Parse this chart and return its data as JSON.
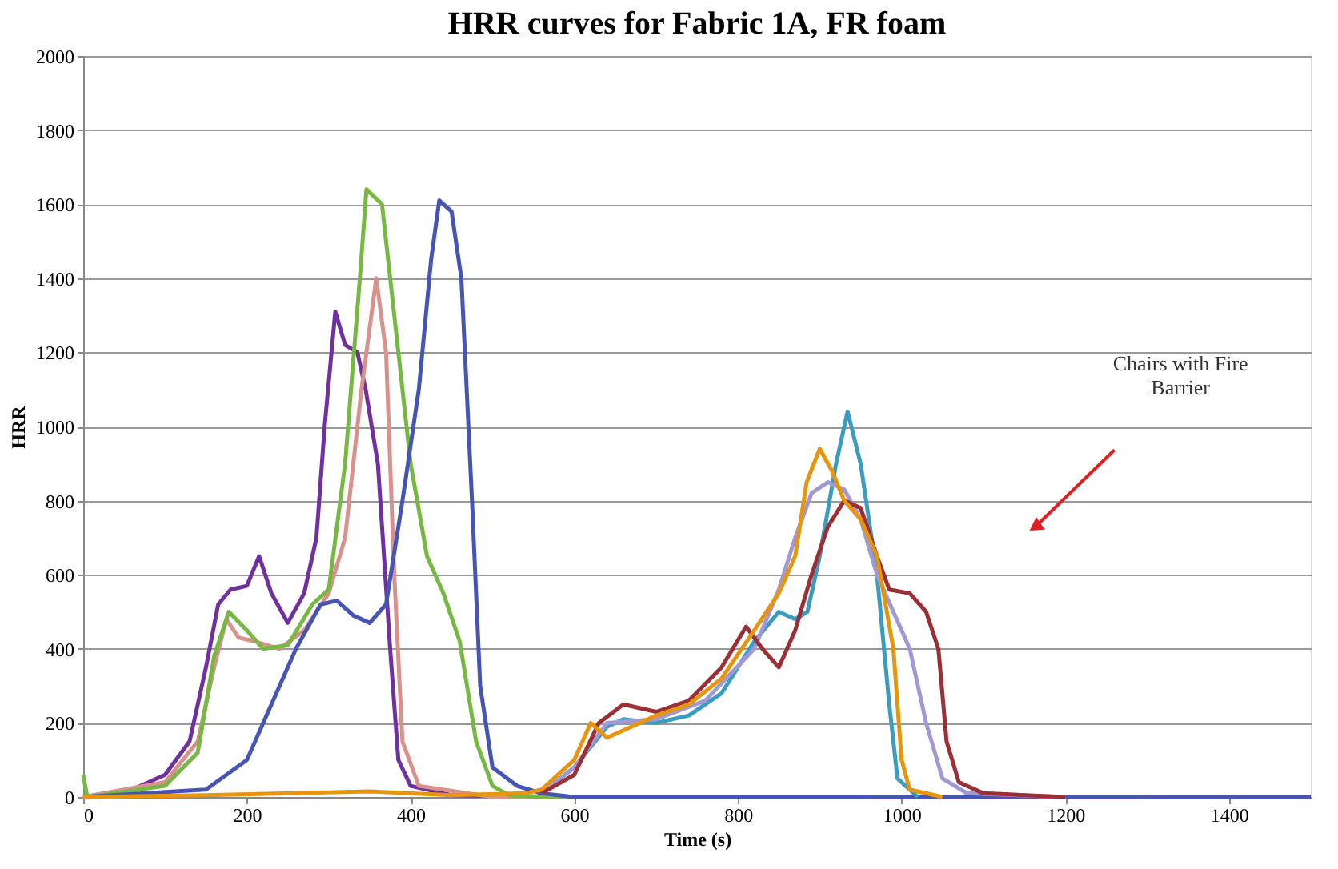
{
  "chart_data": {
    "type": "line",
    "title": "HRR curves for Fabric 1A, FR foam",
    "xlabel": "Time (s)",
    "ylabel": "HRR",
    "xlim": [
      0,
      1500
    ],
    "xticks": [
      0,
      200,
      400,
      600,
      800,
      1000,
      1200,
      1400
    ],
    "ylim": [
      0,
      2000
    ],
    "yticks": [
      0,
      200,
      400,
      600,
      800,
      1000,
      1200,
      1400,
      1600,
      1800,
      2000
    ],
    "grid": "y",
    "marker": "none",
    "line_style": "solid",
    "annotations": [
      "Chairs with Fire\nBarrier"
    ],
    "series": [
      {
        "color": "#7030a0",
        "x": [
          0,
          60,
          100,
          130,
          150,
          165,
          180,
          200,
          215,
          230,
          250,
          270,
          285,
          295,
          308,
          320,
          335,
          345,
          360,
          375,
          385,
          400,
          450,
          600
        ],
        "values": [
          0,
          20,
          60,
          150,
          350,
          520,
          560,
          570,
          650,
          550,
          470,
          550,
          700,
          1000,
          1310,
          1220,
          1200,
          1100,
          900,
          400,
          100,
          30,
          5,
          0
        ]
      },
      {
        "color": "#d9918c",
        "x": [
          0,
          100,
          140,
          160,
          175,
          190,
          210,
          240,
          270,
          300,
          320,
          340,
          358,
          370,
          380,
          390,
          410,
          500,
          950,
          1300
        ],
        "values": [
          0,
          40,
          150,
          350,
          480,
          430,
          420,
          400,
          450,
          550,
          700,
          1100,
          1400,
          1200,
          600,
          150,
          30,
          0,
          0,
          0
        ]
      },
      {
        "color": "#77b843",
        "x": [
          0,
          5,
          100,
          140,
          160,
          178,
          200,
          220,
          250,
          280,
          300,
          320,
          338,
          346,
          365,
          380,
          400,
          420,
          440,
          460,
          480,
          500,
          520,
          560,
          950
        ],
        "values": [
          60,
          0,
          30,
          120,
          380,
          500,
          450,
          400,
          410,
          520,
          560,
          900,
          1400,
          1640,
          1600,
          1300,
          900,
          650,
          550,
          420,
          150,
          30,
          5,
          0,
          0
        ]
      },
      {
        "color": "#4655b5",
        "x": [
          0,
          150,
          200,
          230,
          260,
          290,
          310,
          330,
          350,
          370,
          390,
          410,
          425,
          435,
          450,
          462,
          475,
          485,
          500,
          530,
          560,
          600,
          1300,
          1500
        ],
        "values": [
          0,
          20,
          100,
          250,
          400,
          520,
          530,
          490,
          470,
          520,
          800,
          1100,
          1450,
          1610,
          1580,
          1400,
          800,
          300,
          80,
          30,
          10,
          0,
          0,
          0
        ]
      },
      {
        "color": "#3a9cc0",
        "x": [
          560,
          600,
          640,
          660,
          700,
          740,
          780,
          820,
          850,
          870,
          885,
          900,
          920,
          934,
          950,
          970,
          985,
          995,
          1020
        ],
        "values": [
          10,
          80,
          190,
          210,
          200,
          220,
          280,
          420,
          500,
          480,
          500,
          650,
          900,
          1040,
          900,
          600,
          250,
          50,
          0
        ]
      },
      {
        "color": "#a099d5",
        "x": [
          560,
          600,
          640,
          700,
          760,
          820,
          850,
          870,
          890,
          910,
          930,
          950,
          970,
          990,
          1010,
          1030,
          1050,
          1080,
          1200
        ],
        "values": [
          10,
          80,
          200,
          210,
          260,
          400,
          560,
          700,
          820,
          850,
          830,
          750,
          600,
          500,
          400,
          200,
          50,
          10,
          0
        ]
      },
      {
        "color": "#9b2f35",
        "x": [
          560,
          600,
          630,
          660,
          700,
          740,
          780,
          810,
          830,
          850,
          870,
          890,
          910,
          930,
          950,
          970,
          985,
          1010,
          1030,
          1045,
          1055,
          1070,
          1100,
          1200
        ],
        "values": [
          10,
          60,
          200,
          250,
          230,
          260,
          350,
          460,
          400,
          350,
          450,
          600,
          730,
          800,
          780,
          650,
          560,
          550,
          500,
          400,
          150,
          40,
          10,
          0
        ]
      },
      {
        "color": "#e8950e",
        "x": [
          0,
          150,
          350,
          450,
          540,
          560,
          600,
          620,
          640,
          660,
          700,
          740,
          780,
          820,
          850,
          870,
          884,
          900,
          915,
          930,
          950,
          970,
          990,
          1000,
          1010,
          1050
        ],
        "values": [
          0,
          5,
          15,
          5,
          10,
          20,
          100,
          200,
          160,
          180,
          220,
          250,
          320,
          450,
          550,
          650,
          850,
          940,
          880,
          800,
          750,
          650,
          400,
          100,
          20,
          0
        ]
      }
    ]
  }
}
